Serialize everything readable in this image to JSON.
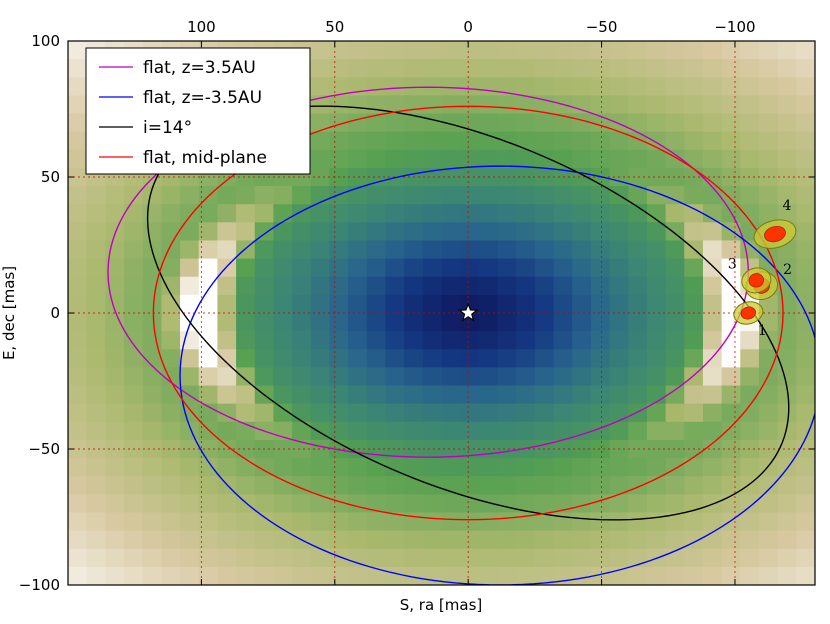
{
  "chart_data": {
    "type": "scatter",
    "xlabel": "S, ra [mas]",
    "ylabel": "E, dec [mas]",
    "xlim": [
      150,
      -130
    ],
    "ylim": [
      -100,
      100
    ],
    "x_ticks": [
      100,
      50,
      0,
      -50,
      -100
    ],
    "x_tick_labels": [
      "100",
      "50",
      "0",
      "−50",
      "−100"
    ],
    "y_ticks": [
      100,
      50,
      0,
      -50,
      -100
    ],
    "y_tick_labels": [
      "100",
      "50",
      "0",
      "−50",
      "−100"
    ],
    "grid": true,
    "legend_position": "top-left",
    "background_colormap": "blue-green-white disk model",
    "star": {
      "x": 0,
      "y": 0
    },
    "series": [
      {
        "name": "flat, z=3.5AU",
        "type": "ellipse",
        "color": "#bf00bf",
        "center": [
          15,
          15
        ],
        "semi_major": 120,
        "semi_minor": 68,
        "angle_deg": 0
      },
      {
        "name": "flat, z=-3.5AU",
        "type": "ellipse",
        "color": "#0000ff",
        "center": [
          -12,
          -23
        ],
        "semi_major": 120,
        "semi_minor": 77,
        "angle_deg": 0
      },
      {
        "name": "i=14°",
        "type": "ellipse",
        "color": "#000000",
        "center": [
          0,
          0
        ],
        "semi_major": 127,
        "semi_minor": 64,
        "angle_deg": 22
      },
      {
        "name": "flat, mid-plane",
        "type": "ellipse",
        "color": "#ff0000",
        "center": [
          0,
          0
        ],
        "semi_major": 118,
        "semi_minor": 76,
        "angle_deg": 0
      }
    ],
    "epochs": [
      {
        "label": "1",
        "x": -105,
        "y": 0,
        "err_rx": 5.5,
        "err_ry": 4
      },
      {
        "label": "2",
        "x": -110,
        "y": 10,
        "err_rx": 6,
        "err_ry": 5
      },
      {
        "label": "3",
        "x": -108,
        "y": 12,
        "err_rx": 5.5,
        "err_ry": 4.5
      },
      {
        "label": "4",
        "x": -115,
        "y": 29,
        "err_rx": 8,
        "err_ry": 5
      }
    ]
  },
  "legend": [
    {
      "label": "flat, z=3.5AU",
      "color": "#bf00bf"
    },
    {
      "label": "flat, z=-3.5AU",
      "color": "#0000ff"
    },
    {
      "label": "i=14°",
      "color": "#000000"
    },
    {
      "label": "flat, mid-plane",
      "color": "#ff0000"
    }
  ]
}
